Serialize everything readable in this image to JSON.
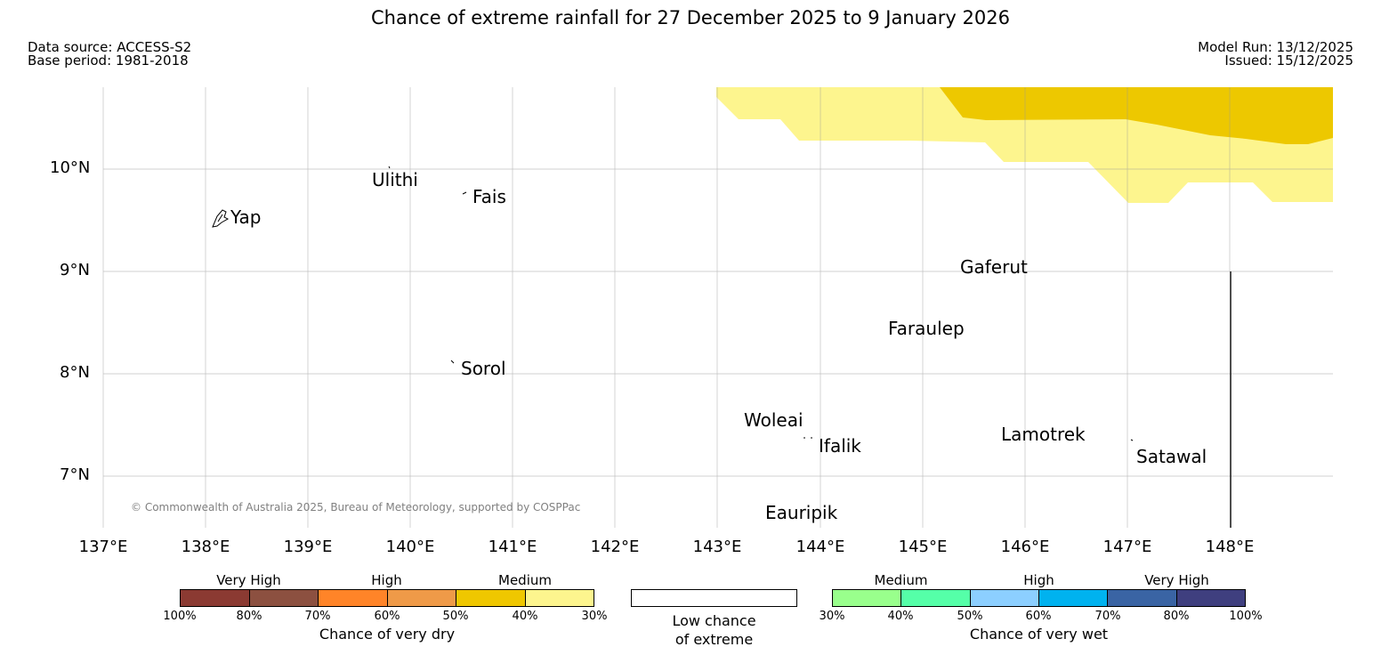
{
  "title": "Chance of extreme rainfall for 27 December 2025 to 9 January 2026",
  "meta": {
    "data_source": "Data source: ACCESS-S2",
    "base_period": "Base period: 1981-2018",
    "model_run": "Model Run: 13/12/2025",
    "issued": "Issued: 15/12/2025"
  },
  "map": {
    "lat_ticks": [
      "10°N",
      "9°N",
      "8°N",
      "7°N"
    ],
    "lon_ticks": [
      "137°E",
      "138°E",
      "139°E",
      "140°E",
      "141°E",
      "142°E",
      "143°E",
      "144°E",
      "145°E",
      "146°E",
      "147°E",
      "148°E"
    ],
    "places": {
      "yap": "Yap",
      "ulithi": "Ulithi",
      "fais": "Fais",
      "sorol": "Sorol",
      "gaferut": "Gaferut",
      "faraulep": "Faraulep",
      "woleai": "Woleai",
      "ifalik": "Ifalik",
      "lamotrek": "Lamotrek",
      "satawal": "Satawal",
      "eauripik": "Eauripik"
    },
    "copyright": "© Commonwealth of Australia 2025, Bureau of Meteorology, supported by COSPPac",
    "colors": {
      "medium_dry_light": "#fdf58e",
      "medium_dry_dark": "#edc800",
      "grid": "#999999"
    }
  },
  "legend": {
    "dry": {
      "groups": [
        "Very High",
        "High",
        "Medium"
      ],
      "colors": [
        "#8b3a32",
        "#8c5040",
        "#ff8428",
        "#ef9a48",
        "#efc700",
        "#fdf58e"
      ],
      "ticks": [
        "100%",
        "80%",
        "70%",
        "60%",
        "50%",
        "40%",
        "30%"
      ],
      "caption": "Chance of very dry"
    },
    "neutral": {
      "line1": "Low chance",
      "line2": "of extreme"
    },
    "wet": {
      "groups": [
        "Medium",
        "High",
        "Very High"
      ],
      "colors": [
        "#99ff8c",
        "#55ffa8",
        "#8ccfff",
        "#00b2ef",
        "#3a64a4",
        "#3f3f7f"
      ],
      "ticks": [
        "30%",
        "40%",
        "50%",
        "60%",
        "70%",
        "80%",
        "100%"
      ],
      "caption": "Chance of very wet"
    }
  }
}
